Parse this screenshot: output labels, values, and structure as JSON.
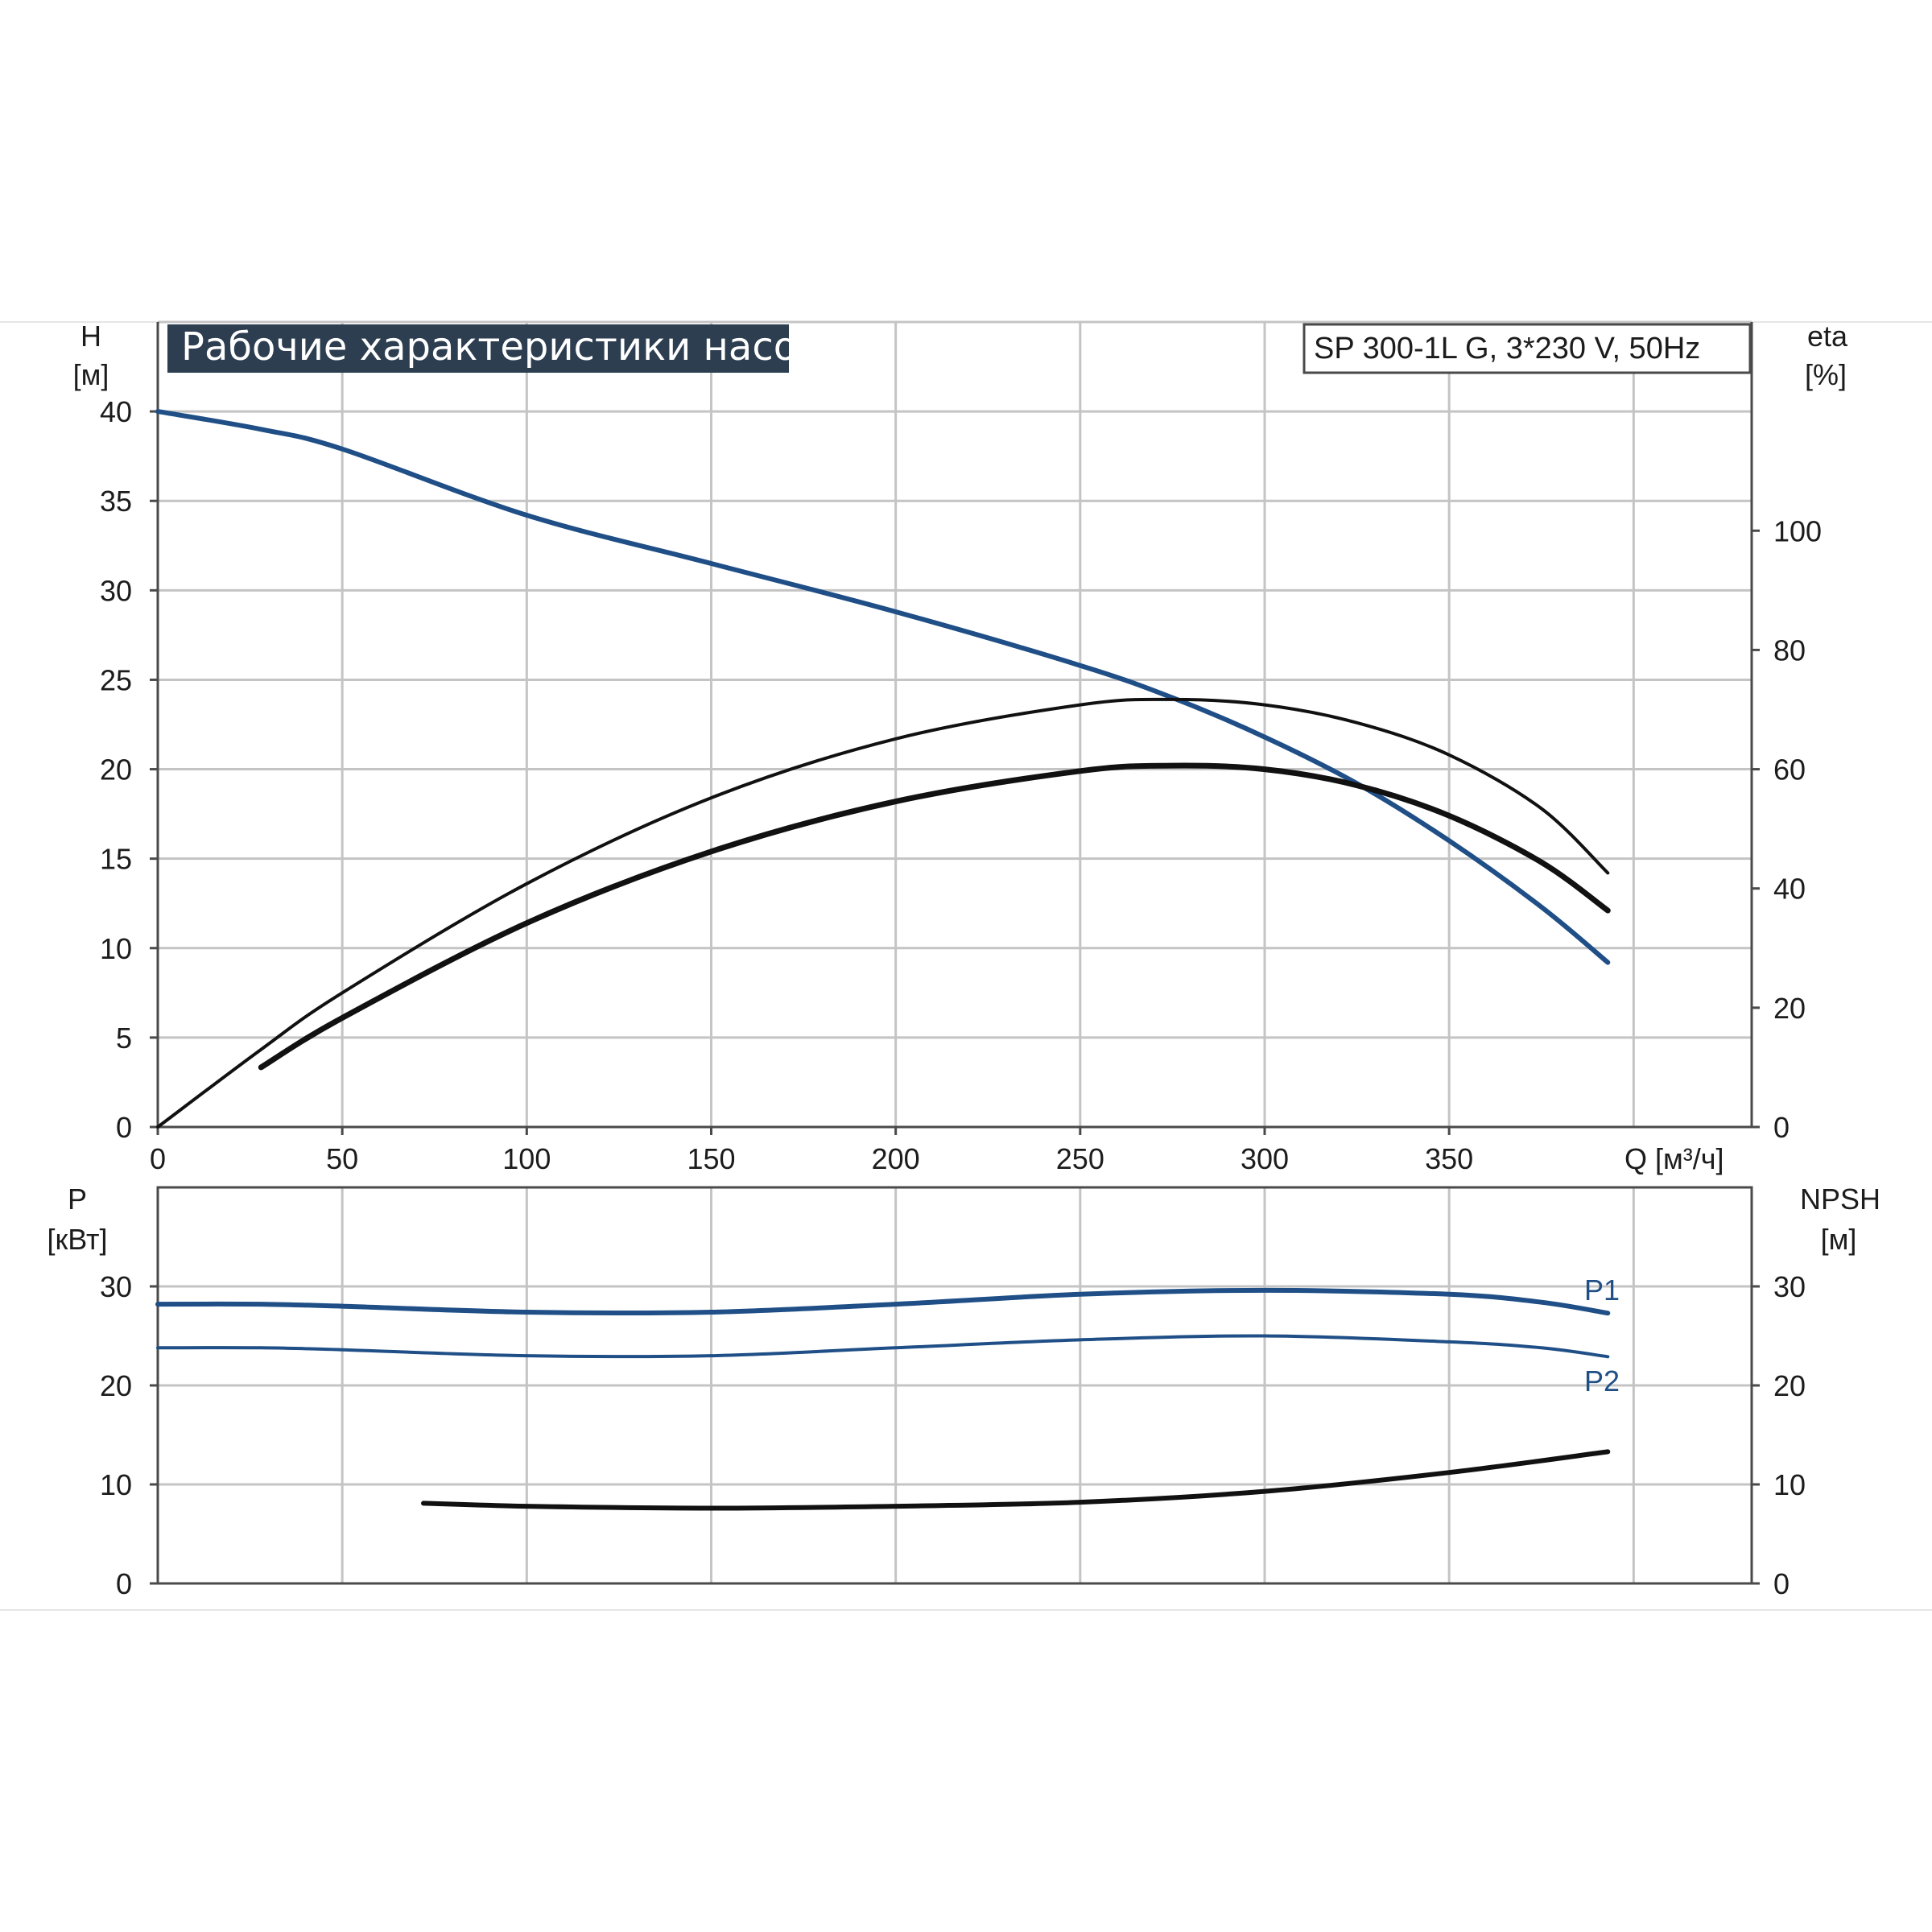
{
  "chart_data": [
    {
      "type": "line",
      "title": "Рабочие характеристики насоса",
      "subtitle": "SP 300-1L G, 3*230 V, 50Hz",
      "xlabel": "Q [м³/ч]",
      "ylabel_left": [
        "H",
        "[м]"
      ],
      "ylabel_right": [
        "eta",
        "[%]"
      ],
      "xlim": [
        0,
        432
      ],
      "ylim_left": [
        0,
        45
      ],
      "ylim_right": [
        0,
        135
      ],
      "xticks": [
        "0",
        "50",
        "100",
        "150",
        "200",
        "250",
        "300",
        "350"
      ],
      "yticks_left": [
        "0",
        "5",
        "10",
        "15",
        "20",
        "25",
        "30",
        "35",
        "40"
      ],
      "yticks_right": [
        "0",
        "20",
        "40",
        "60",
        "80",
        "100"
      ],
      "grid": true,
      "colors": {
        "blue": "#1f4f86",
        "black": "#111111"
      },
      "series": [
        {
          "axis": "left",
          "color": "#1f4f86",
          "x": [
            0,
            28,
            50,
            100,
            150,
            200,
            250,
            275,
            300,
            325,
            350,
            375,
            393
          ],
          "y": [
            40,
            39,
            37.9,
            34.2,
            31.5,
            28.8,
            25.8,
            24,
            21.8,
            19.2,
            16,
            12.3,
            9.2
          ]
        },
        {
          "axis": "right",
          "color": "#111111",
          "x": [
            0,
            28,
            50,
            100,
            150,
            200,
            250,
            275,
            300,
            325,
            350,
            375,
            393
          ],
          "y": [
            0,
            13,
            22.5,
            40.8,
            55.2,
            65.1,
            70.8,
            71.7,
            70.8,
            67.8,
            62.4,
            53.4,
            42.6
          ]
        },
        {
          "axis": "right",
          "color": "#111111",
          "x": [
            28,
            50,
            100,
            150,
            200,
            250,
            275,
            300,
            325,
            350,
            375,
            393
          ],
          "y": [
            10,
            18.3,
            34.2,
            46.2,
            54.6,
            59.7,
            60.6,
            60,
            57.3,
            52.2,
            44.4,
            36.3
          ]
        }
      ]
    },
    {
      "type": "line",
      "xlabel": "",
      "ylabel_left": [
        "P",
        "[кВт]"
      ],
      "ylabel_right": [
        "NPSH",
        "[м]"
      ],
      "xlim": [
        0,
        432
      ],
      "ylim": [
        0,
        40
      ],
      "yticks_left": [
        "0",
        "10",
        "20",
        "30"
      ],
      "yticks_right": [
        "0",
        "10",
        "20",
        "30"
      ],
      "grid": true,
      "series": [
        {
          "name": "P1",
          "color": "#1f4f86",
          "x": [
            0,
            28,
            50,
            100,
            150,
            200,
            250,
            300,
            350,
            375,
            393
          ],
          "y": [
            28.2,
            28.2,
            28,
            27.4,
            27.4,
            28.2,
            29.2,
            29.6,
            29.2,
            28.4,
            27.3
          ]
        },
        {
          "name": "P2",
          "color": "#1f4f86",
          "x": [
            0,
            28,
            50,
            100,
            150,
            200,
            250,
            300,
            350,
            375,
            393
          ],
          "y": [
            23.8,
            23.8,
            23.6,
            23,
            23,
            23.8,
            24.6,
            25,
            24.4,
            23.8,
            22.9
          ]
        },
        {
          "color": "#111111",
          "x": [
            72,
            100,
            150,
            200,
            250,
            300,
            350,
            393
          ],
          "y": [
            8.1,
            7.8,
            7.6,
            7.8,
            8.2,
            9.3,
            11.2,
            13.3
          ]
        }
      ]
    }
  ]
}
